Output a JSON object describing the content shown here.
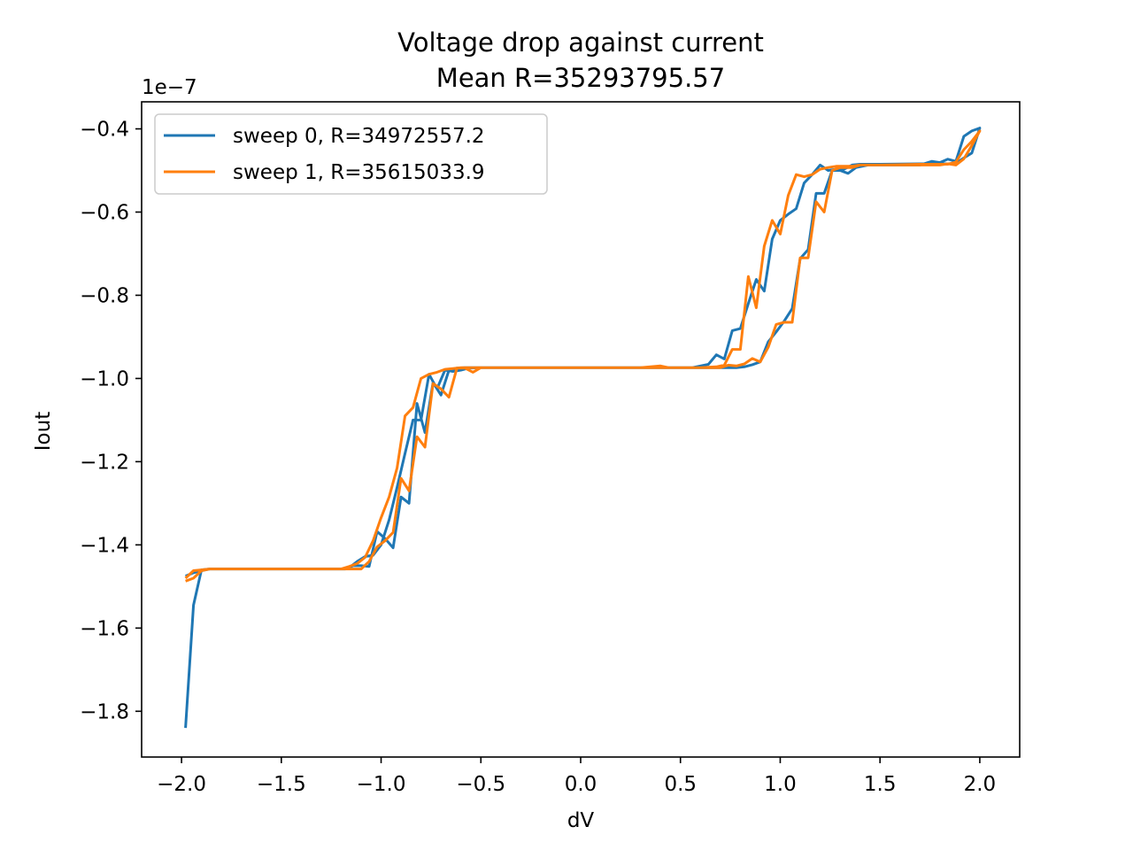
{
  "chart_data": {
    "type": "line",
    "title": [
      "Voltage drop against current",
      "Mean R=35293795.57"
    ],
    "xlabel": "dV",
    "ylabel": "Iout",
    "y_offset_label": "1e−7",
    "xlim": [
      -2.2,
      2.2
    ],
    "ylim": [
      -1.91,
      -0.335
    ],
    "y_scale_exponent": -7,
    "grid": false,
    "legend_position": "upper-left",
    "xticks": [
      {
        "value": -2.0,
        "label": "−2.0"
      },
      {
        "value": -1.5,
        "label": "−1.5"
      },
      {
        "value": -1.0,
        "label": "−1.0"
      },
      {
        "value": -0.5,
        "label": "−0.5"
      },
      {
        "value": 0.0,
        "label": "0.0"
      },
      {
        "value": 0.5,
        "label": "0.5"
      },
      {
        "value": 1.0,
        "label": "1.0"
      },
      {
        "value": 1.5,
        "label": "1.5"
      },
      {
        "value": 2.0,
        "label": "2.0"
      }
    ],
    "yticks": [
      {
        "value": -1.8,
        "label": "−1.8"
      },
      {
        "value": -1.6,
        "label": "−1.6"
      },
      {
        "value": -1.4,
        "label": "−1.4"
      },
      {
        "value": -1.2,
        "label": "−1.2"
      },
      {
        "value": -1.0,
        "label": "−1.0"
      },
      {
        "value": -0.8,
        "label": "−0.8"
      },
      {
        "value": -0.6,
        "label": "−0.6"
      },
      {
        "value": -0.4,
        "label": "−0.4"
      }
    ],
    "series": [
      {
        "name": "sweep 0, R=34972557.2",
        "color": "#1f77b4",
        "points": [
          [
            -1.98,
            -1.84
          ],
          [
            -1.94,
            -1.545
          ],
          [
            -1.9,
            -1.46
          ],
          [
            -1.86,
            -1.458
          ],
          [
            -1.8,
            -1.458
          ],
          [
            -1.5,
            -1.458
          ],
          [
            -1.3,
            -1.458
          ],
          [
            -1.2,
            -1.458
          ],
          [
            -1.18,
            -1.458
          ],
          [
            -1.14,
            -1.45
          ],
          [
            -1.1,
            -1.45
          ],
          [
            -1.06,
            -1.452
          ],
          [
            -1.02,
            -1.368
          ],
          [
            -0.98,
            -1.385
          ],
          [
            -0.94,
            -1.407
          ],
          [
            -0.9,
            -1.285
          ],
          [
            -0.86,
            -1.3
          ],
          [
            -0.82,
            -1.06
          ],
          [
            -0.78,
            -1.13
          ],
          [
            -0.74,
            -1.01
          ],
          [
            -0.7,
            -1.04
          ],
          [
            -0.66,
            -0.98
          ],
          [
            -0.62,
            -0.975
          ],
          [
            -0.58,
            -0.974
          ],
          [
            -0.5,
            -0.974
          ],
          [
            0.0,
            -0.974
          ],
          [
            0.3,
            -0.974
          ],
          [
            0.5,
            -0.974
          ],
          [
            0.6,
            -0.974
          ],
          [
            0.7,
            -0.974
          ],
          [
            0.78,
            -0.974
          ],
          [
            0.82,
            -0.972
          ],
          [
            0.86,
            -0.967
          ],
          [
            0.9,
            -0.96
          ],
          [
            0.94,
            -0.912
          ],
          [
            0.98,
            -0.888
          ],
          [
            1.02,
            -0.862
          ],
          [
            1.06,
            -0.832
          ],
          [
            1.1,
            -0.712
          ],
          [
            1.14,
            -0.69
          ],
          [
            1.18,
            -0.555
          ],
          [
            1.22,
            -0.555
          ],
          [
            1.26,
            -0.5
          ],
          [
            1.3,
            -0.5
          ],
          [
            1.34,
            -0.507
          ],
          [
            1.38,
            -0.493
          ],
          [
            1.44,
            -0.487
          ],
          [
            1.5,
            -0.487
          ],
          [
            1.6,
            -0.487
          ],
          [
            1.7,
            -0.487
          ],
          [
            1.76,
            -0.478
          ],
          [
            1.8,
            -0.481
          ],
          [
            1.84,
            -0.473
          ],
          [
            1.88,
            -0.478
          ],
          [
            1.92,
            -0.418
          ],
          [
            1.96,
            -0.405
          ],
          [
            2.0,
            -0.398
          ],
          [
            1.96,
            -0.458
          ],
          [
            1.92,
            -0.47
          ],
          [
            1.88,
            -0.483
          ],
          [
            1.84,
            -0.484
          ],
          [
            1.7,
            -0.484
          ],
          [
            1.5,
            -0.485
          ],
          [
            1.4,
            -0.485
          ],
          [
            1.36,
            -0.487
          ],
          [
            1.32,
            -0.497
          ],
          [
            1.28,
            -0.497
          ],
          [
            1.24,
            -0.5
          ],
          [
            1.2,
            -0.487
          ],
          [
            1.16,
            -0.51
          ],
          [
            1.12,
            -0.53
          ],
          [
            1.08,
            -0.592
          ],
          [
            1.04,
            -0.605
          ],
          [
            1.0,
            -0.62
          ],
          [
            0.96,
            -0.665
          ],
          [
            0.92,
            -0.79
          ],
          [
            0.88,
            -0.762
          ],
          [
            0.84,
            -0.82
          ],
          [
            0.8,
            -0.88
          ],
          [
            0.76,
            -0.885
          ],
          [
            0.72,
            -0.953
          ],
          [
            0.68,
            -0.943
          ],
          [
            0.64,
            -0.966
          ],
          [
            0.6,
            -0.97
          ],
          [
            0.56,
            -0.974
          ],
          [
            0.4,
            -0.974
          ],
          [
            0.0,
            -0.974
          ],
          [
            -0.5,
            -0.974
          ],
          [
            -0.56,
            -0.975
          ],
          [
            -0.6,
            -0.98
          ],
          [
            -0.64,
            -0.983
          ],
          [
            -0.68,
            -0.98
          ],
          [
            -0.72,
            -1.025
          ],
          [
            -0.76,
            -0.99
          ],
          [
            -0.8,
            -1.1
          ],
          [
            -0.84,
            -1.1
          ],
          [
            -0.88,
            -1.18
          ],
          [
            -0.92,
            -1.262
          ],
          [
            -0.96,
            -1.34
          ],
          [
            -1.0,
            -1.4
          ],
          [
            -1.04,
            -1.425
          ],
          [
            -1.08,
            -1.428
          ],
          [
            -1.12,
            -1.44
          ],
          [
            -1.16,
            -1.455
          ],
          [
            -1.2,
            -1.458
          ],
          [
            -1.5,
            -1.458
          ],
          [
            -1.8,
            -1.458
          ],
          [
            -1.86,
            -1.458
          ],
          [
            -1.9,
            -1.462
          ],
          [
            -1.94,
            -1.467
          ],
          [
            -1.98,
            -1.475
          ]
        ]
      },
      {
        "name": "sweep 1, R=35615033.9",
        "color": "#ff7f0e",
        "points": [
          [
            -1.98,
            -1.487
          ],
          [
            -1.94,
            -1.48
          ],
          [
            -1.9,
            -1.462
          ],
          [
            -1.86,
            -1.458
          ],
          [
            -1.8,
            -1.458
          ],
          [
            -1.5,
            -1.458
          ],
          [
            -1.2,
            -1.458
          ],
          [
            -1.1,
            -1.458
          ],
          [
            -1.06,
            -1.44
          ],
          [
            -1.02,
            -1.405
          ],
          [
            -0.98,
            -1.39
          ],
          [
            -0.94,
            -1.37
          ],
          [
            -0.9,
            -1.24
          ],
          [
            -0.86,
            -1.27
          ],
          [
            -0.82,
            -1.14
          ],
          [
            -0.78,
            -1.165
          ],
          [
            -0.74,
            -1.012
          ],
          [
            -0.7,
            -1.025
          ],
          [
            -0.66,
            -1.045
          ],
          [
            -0.62,
            -0.975
          ],
          [
            -0.58,
            -0.975
          ],
          [
            -0.54,
            -0.985
          ],
          [
            -0.5,
            -0.974
          ],
          [
            0.0,
            -0.974
          ],
          [
            0.3,
            -0.974
          ],
          [
            0.4,
            -0.97
          ],
          [
            0.44,
            -0.974
          ],
          [
            0.6,
            -0.974
          ],
          [
            0.7,
            -0.974
          ],
          [
            0.74,
            -0.968
          ],
          [
            0.78,
            -0.97
          ],
          [
            0.82,
            -0.965
          ],
          [
            0.86,
            -0.952
          ],
          [
            0.9,
            -0.96
          ],
          [
            0.94,
            -0.925
          ],
          [
            0.98,
            -0.87
          ],
          [
            1.02,
            -0.865
          ],
          [
            1.06,
            -0.865
          ],
          [
            1.1,
            -0.71
          ],
          [
            1.14,
            -0.71
          ],
          [
            1.18,
            -0.575
          ],
          [
            1.22,
            -0.6
          ],
          [
            1.26,
            -0.5
          ],
          [
            1.3,
            -0.493
          ],
          [
            1.36,
            -0.493
          ],
          [
            1.4,
            -0.487
          ],
          [
            1.5,
            -0.487
          ],
          [
            1.7,
            -0.487
          ],
          [
            1.8,
            -0.487
          ],
          [
            1.84,
            -0.484
          ],
          [
            1.88,
            -0.487
          ],
          [
            1.92,
            -0.472
          ],
          [
            1.96,
            -0.44
          ],
          [
            2.0,
            -0.405
          ],
          [
            1.96,
            -0.43
          ],
          [
            1.92,
            -0.45
          ],
          [
            1.88,
            -0.48
          ],
          [
            1.84,
            -0.485
          ],
          [
            1.7,
            -0.485
          ],
          [
            1.5,
            -0.487
          ],
          [
            1.44,
            -0.487
          ],
          [
            1.4,
            -0.487
          ],
          [
            1.36,
            -0.49
          ],
          [
            1.32,
            -0.49
          ],
          [
            1.28,
            -0.49
          ],
          [
            1.24,
            -0.493
          ],
          [
            1.2,
            -0.497
          ],
          [
            1.16,
            -0.51
          ],
          [
            1.12,
            -0.515
          ],
          [
            1.08,
            -0.51
          ],
          [
            1.04,
            -0.56
          ],
          [
            1.0,
            -0.653
          ],
          [
            0.96,
            -0.62
          ],
          [
            0.92,
            -0.682
          ],
          [
            0.88,
            -0.83
          ],
          [
            0.84,
            -0.755
          ],
          [
            0.8,
            -0.93
          ],
          [
            0.76,
            -0.93
          ],
          [
            0.72,
            -0.968
          ],
          [
            0.68,
            -0.972
          ],
          [
            0.6,
            -0.974
          ],
          [
            0.5,
            -0.974
          ],
          [
            0.0,
            -0.974
          ],
          [
            -0.5,
            -0.974
          ],
          [
            -0.56,
            -0.974
          ],
          [
            -0.6,
            -0.974
          ],
          [
            -0.64,
            -0.976
          ],
          [
            -0.68,
            -0.978
          ],
          [
            -0.72,
            -0.985
          ],
          [
            -0.76,
            -0.99
          ],
          [
            -0.8,
            -1.0
          ],
          [
            -0.84,
            -1.07
          ],
          [
            -0.88,
            -1.09
          ],
          [
            -0.92,
            -1.215
          ],
          [
            -0.96,
            -1.285
          ],
          [
            -1.0,
            -1.335
          ],
          [
            -1.04,
            -1.39
          ],
          [
            -1.08,
            -1.43
          ],
          [
            -1.12,
            -1.445
          ],
          [
            -1.16,
            -1.452
          ],
          [
            -1.2,
            -1.458
          ],
          [
            -1.5,
            -1.458
          ],
          [
            -1.8,
            -1.458
          ],
          [
            -1.86,
            -1.458
          ],
          [
            -1.9,
            -1.46
          ],
          [
            -1.94,
            -1.462
          ],
          [
            -1.98,
            -1.48
          ]
        ]
      }
    ]
  }
}
